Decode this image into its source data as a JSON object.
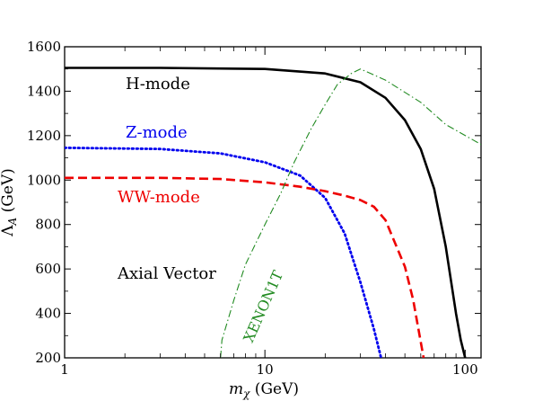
{
  "chart_data": {
    "type": "line",
    "xscale": "log",
    "xlim": [
      1,
      120
    ],
    "ylim": [
      200,
      1600
    ],
    "xlabel": "m_χ (GeV)",
    "ylabel": "Λ_A (GeV)",
    "xticks": [
      1,
      10,
      100
    ],
    "xtick_labels": [
      "1",
      "10",
      "100"
    ],
    "yticks": [
      200,
      400,
      600,
      800,
      1000,
      1200,
      1400,
      1600
    ],
    "ytick_labels": [
      "200",
      "400",
      "600",
      "800",
      "1000",
      "1200",
      "1400",
      "1600"
    ],
    "panel_label": "Axial Vector",
    "grid": false,
    "series": [
      {
        "name": "H-mode",
        "color": "#000000",
        "style": "solid",
        "x": [
          1,
          3,
          10,
          20,
          30,
          40,
          50,
          60,
          70,
          80,
          90,
          95,
          100
        ],
        "y": [
          1505,
          1505,
          1500,
          1480,
          1440,
          1370,
          1270,
          1140,
          960,
          700,
          400,
          280,
          200
        ]
      },
      {
        "name": "Z-mode",
        "color": "#0000ee",
        "style": "dotted",
        "x": [
          1,
          3,
          6,
          10,
          15,
          20,
          25,
          30,
          35,
          38
        ],
        "y": [
          1145,
          1140,
          1120,
          1080,
          1020,
          920,
          760,
          540,
          330,
          200
        ]
      },
      {
        "name": "WW-mode",
        "color": "#ee0000",
        "style": "dashed",
        "x": [
          1,
          3,
          6,
          10,
          15,
          20,
          25,
          30,
          35,
          40,
          50,
          55,
          62
        ],
        "y": [
          1010,
          1010,
          1005,
          990,
          970,
          950,
          930,
          910,
          880,
          820,
          610,
          460,
          200
        ]
      },
      {
        "name": "XENON1T",
        "color": "#228b22",
        "style": "dashdot",
        "x": [
          6,
          6.1,
          7,
          8,
          10,
          12,
          14,
          17,
          20,
          23,
          27,
          30,
          40,
          60,
          80,
          120
        ],
        "y": [
          200,
          280,
          460,
          620,
          800,
          940,
          1080,
          1230,
          1340,
          1430,
          1480,
          1500,
          1450,
          1350,
          1250,
          1160
        ]
      }
    ],
    "annotations": [
      {
        "text": "H-mode",
        "color": "#000000"
      },
      {
        "text": "Z-mode",
        "color": "#0000ee"
      },
      {
        "text": "WW-mode",
        "color": "#ee0000"
      },
      {
        "text": "XENON1T",
        "color": "#228b22"
      }
    ]
  }
}
